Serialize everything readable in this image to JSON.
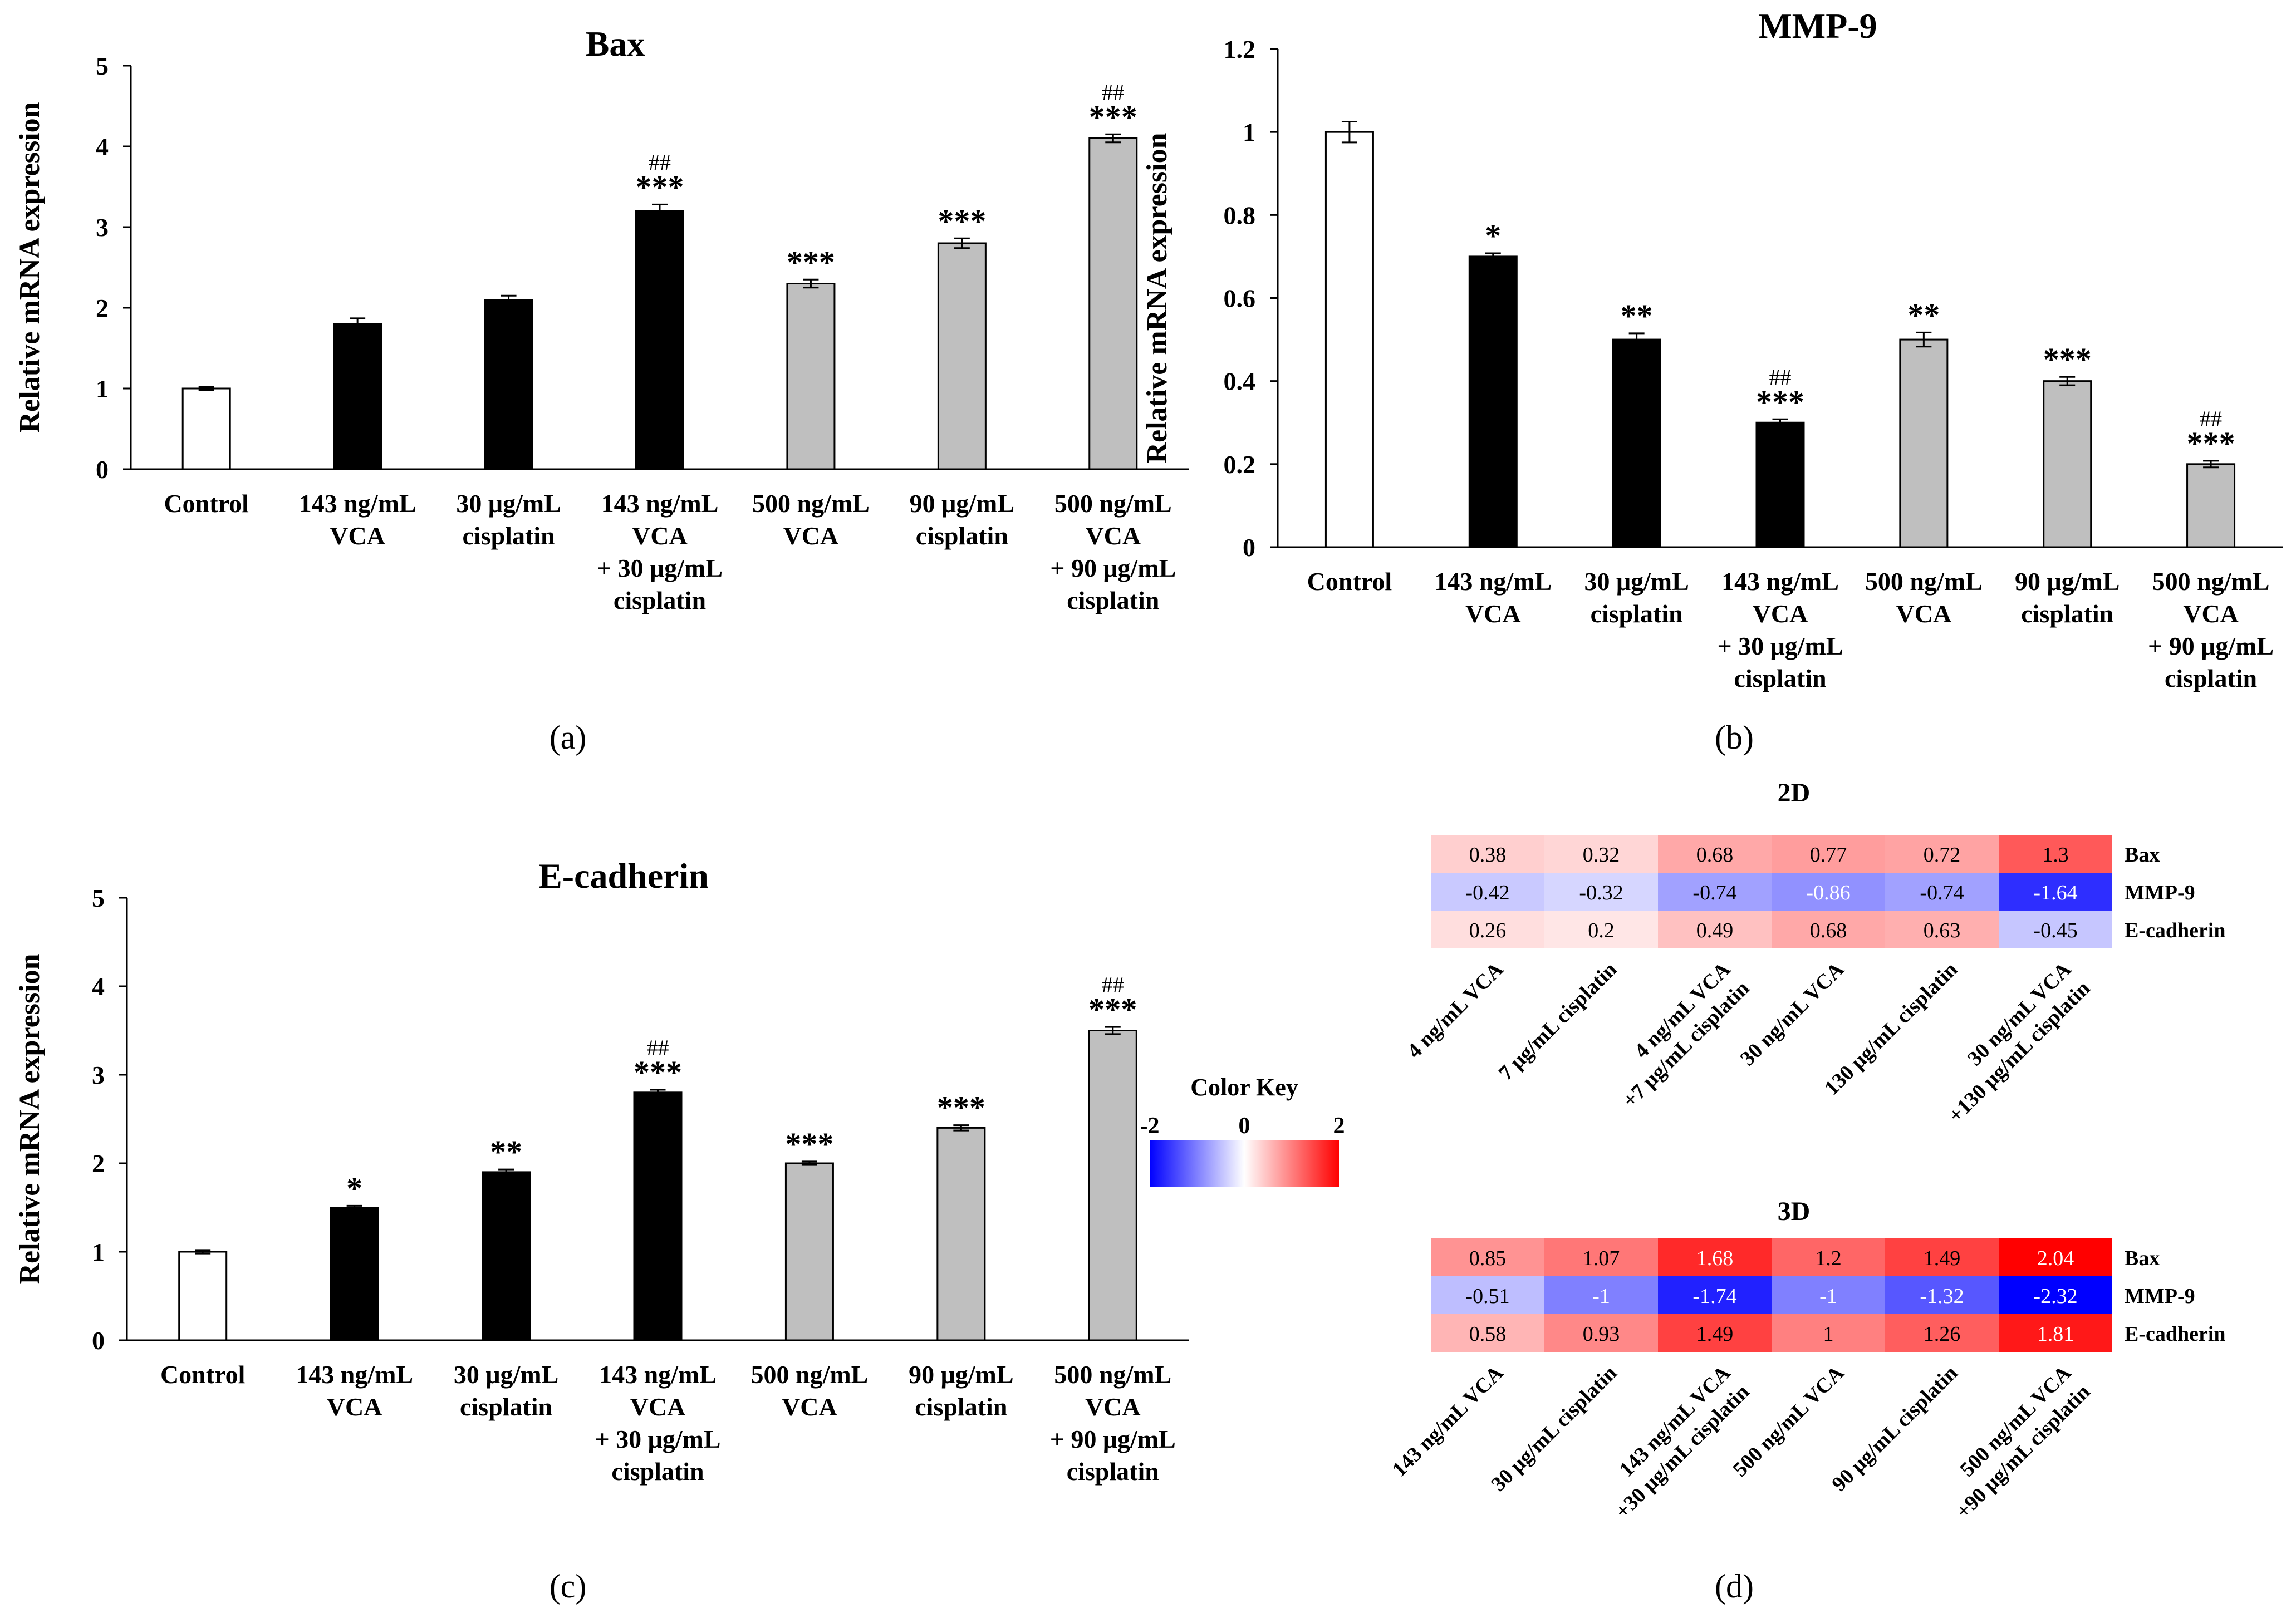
{
  "chart_data": [
    {
      "id": "a",
      "type": "bar",
      "title": "Bax",
      "ylabel": "Relative mRNA expression",
      "ylim": [
        0,
        5
      ],
      "yticks": [
        "0",
        "1",
        "2",
        "3",
        "4",
        "5"
      ],
      "panel_label": "(a)",
      "categories": [
        [
          "Control"
        ],
        [
          "143 ng/mL",
          "VCA"
        ],
        [
          "30 μg/mL",
          "cisplatin"
        ],
        [
          "143 ng/mL",
          "VCA",
          "+ 30 μg/mL",
          "cisplatin"
        ],
        [
          "500 ng/mL",
          "VCA"
        ],
        [
          "90 μg/mL",
          "cisplatin"
        ],
        [
          "500 ng/mL",
          "VCA",
          "+ 90 μg/mL",
          "cisplatin"
        ]
      ],
      "values": [
        1.0,
        1.8,
        2.1,
        3.2,
        2.3,
        2.8,
        4.1
      ],
      "errors": [
        0.02,
        0.07,
        0.05,
        0.08,
        0.05,
        0.06,
        0.05
      ],
      "fills": [
        "white",
        "black",
        "black",
        "black",
        "gray",
        "gray",
        "gray"
      ],
      "annotations": [
        "",
        "",
        "",
        "***",
        "***",
        "***",
        "***"
      ],
      "annotations2": [
        "",
        "",
        "",
        "##",
        "",
        "",
        "##"
      ]
    },
    {
      "id": "b",
      "type": "bar",
      "title": "MMP-9",
      "ylabel": "Relative mRNA expression",
      "ylim": [
        0,
        1.2
      ],
      "yticks": [
        "0",
        "0.2",
        "0.4",
        "0.6",
        "0.8",
        "1",
        "1.2"
      ],
      "panel_label": "(b)",
      "categories": [
        [
          "Control"
        ],
        [
          "143 ng/mL",
          "VCA"
        ],
        [
          "30 μg/mL",
          "cisplatin"
        ],
        [
          "143 ng/mL",
          "VCA",
          "+ 30 μg/mL",
          "cisplatin"
        ],
        [
          "500 ng/mL",
          "VCA"
        ],
        [
          "90 μg/mL",
          "cisplatin"
        ],
        [
          "500 ng/mL",
          "VCA",
          "+ 90 μg/mL",
          "cisplatin"
        ]
      ],
      "values": [
        1.0,
        0.7,
        0.5,
        0.3,
        0.5,
        0.4,
        0.2
      ],
      "errors": [
        0.025,
        0.008,
        0.015,
        0.008,
        0.017,
        0.01,
        0.008
      ],
      "fills": [
        "white",
        "black",
        "black",
        "black",
        "gray",
        "gray",
        "gray"
      ],
      "annotations": [
        "",
        "*",
        "**",
        "***",
        "**",
        "***",
        "***"
      ],
      "annotations2": [
        "",
        "",
        "",
        "##",
        "",
        "",
        "##"
      ]
    },
    {
      "id": "c",
      "type": "bar",
      "title": "E-cadherin",
      "ylabel": "Relative mRNA expression",
      "ylim": [
        0,
        5
      ],
      "yticks": [
        "0",
        "1",
        "2",
        "3",
        "4",
        "5"
      ],
      "panel_label": "(c)",
      "categories": [
        [
          "Control"
        ],
        [
          "143 ng/mL",
          "VCA"
        ],
        [
          "30 μg/mL",
          "cisplatin"
        ],
        [
          "143 ng/mL",
          "VCA",
          "+ 30 μg/mL",
          "cisplatin"
        ],
        [
          "500 ng/mL",
          "VCA"
        ],
        [
          "90 μg/mL",
          "cisplatin"
        ],
        [
          "500 ng/mL",
          "VCA",
          "+ 90 μg/mL",
          "cisplatin"
        ]
      ],
      "values": [
        1.0,
        1.5,
        1.9,
        2.8,
        2.0,
        2.4,
        3.5
      ],
      "errors": [
        0.02,
        0.02,
        0.03,
        0.03,
        0.02,
        0.03,
        0.04
      ],
      "fills": [
        "white",
        "black",
        "black",
        "black",
        "gray",
        "gray",
        "gray"
      ],
      "annotations": [
        "",
        "*",
        "**",
        "***",
        "***",
        "***",
        "***"
      ],
      "annotations2": [
        "",
        "",
        "",
        "##",
        "",
        "",
        "##"
      ]
    },
    {
      "id": "d",
      "type": "heatmap",
      "panel_label": "(d)",
      "color_key": {
        "title": "Color Key",
        "ticks": [
          "-2",
          "0",
          "2"
        ],
        "range": [
          -2,
          2
        ]
      },
      "heatmaps": [
        {
          "title": "2D",
          "rows": [
            "Bax",
            "MMP-9",
            "E-cadherin"
          ],
          "columns": [
            [
              "4 ng/mL VCA"
            ],
            [
              "7 μg/mL cisplatin"
            ],
            [
              "4 ng/mL VCA",
              "+7 μg/mL cisplatin"
            ],
            [
              "30 ng/mL VCA"
            ],
            [
              "130 μg/mL cisplatin"
            ],
            [
              "30 ng/mL VCA",
              "+130 μg/mL cisplatin"
            ]
          ],
          "values": [
            [
              0.38,
              0.32,
              0.68,
              0.77,
              0.72,
              1.3
            ],
            [
              -0.42,
              -0.32,
              -0.74,
              -0.86,
              -0.74,
              -1.64
            ],
            [
              0.26,
              0.2,
              0.49,
              0.68,
              0.63,
              -0.45
            ]
          ],
          "labels": [
            [
              "0.38",
              "0.32",
              "0.68",
              "0.77",
              "0.72",
              "1.3"
            ],
            [
              "-0.42",
              "-0.32",
              "-0.74",
              "-0.86",
              "-0.74",
              "-1.64"
            ],
            [
              "0.26",
              "0.2",
              "0.49",
              "0.68",
              "0.63",
              "-0.45"
            ]
          ]
        },
        {
          "title": "3D",
          "rows": [
            "Bax",
            "MMP-9",
            "E-cadherin"
          ],
          "columns": [
            [
              "143 ng/mL VCA"
            ],
            [
              "30 μg/mL cisplatin"
            ],
            [
              "143 ng/mL VCA",
              "+30 μg/mL cisplatin"
            ],
            [
              "500 ng/mL VCA"
            ],
            [
              "90 μg/mL cisplatin"
            ],
            [
              "500 ng/mL VCA",
              "+90 μg/mL cisplatin"
            ]
          ],
          "values": [
            [
              0.85,
              1.07,
              1.68,
              1.2,
              1.49,
              2.04
            ],
            [
              -0.51,
              -1,
              -1.74,
              -1,
              -1.32,
              -2.32
            ],
            [
              0.58,
              0.93,
              1.49,
              1,
              1.26,
              1.81
            ]
          ],
          "labels": [
            [
              "0.85",
              "1.07",
              "1.68",
              "1.2",
              "1.49",
              "2.04"
            ],
            [
              "-0.51",
              "-1",
              "-1.74",
              "-1",
              "-1.32",
              "-2.32"
            ],
            [
              "0.58",
              "0.93",
              "1.49",
              "1",
              "1.26",
              "1.81"
            ]
          ]
        }
      ]
    }
  ],
  "colors": {
    "black_bar": "#000000",
    "gray_bar": "#bfbfbf",
    "white_bar": "#ffffff",
    "neg": "#0000ff",
    "mid": "#ffffff",
    "pos": "#ff0000"
  }
}
